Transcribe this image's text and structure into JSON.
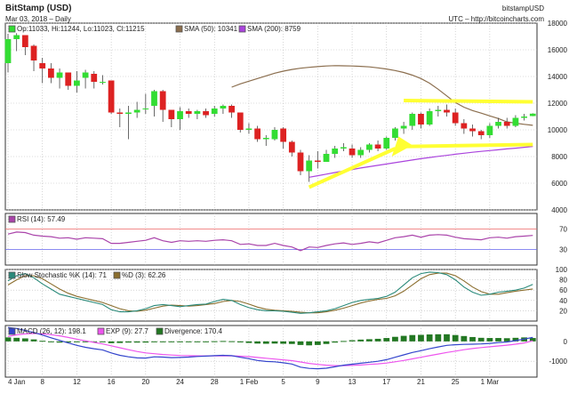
{
  "header": {
    "title": "BitStamp (USD)",
    "date_line": "Mar 03, 2018 – Daily",
    "source_name": "bitstampUSD",
    "source_url": "UTC – http://bitcoincharts.com"
  },
  "chart_data": [
    {
      "panel": "price",
      "type": "candlestick",
      "legend": {
        "ohlc": "Op:11033, Hi:11244, Lo:11023, Cl:11215",
        "sma50": "SMA (50): 10341",
        "sma200": "SMA (200): 8759"
      },
      "colors": {
        "up": "#33dd33",
        "down": "#dd2222",
        "sma50": "#8b6e4e",
        "sma200": "#aa44dd",
        "annotation": "#ffff33"
      },
      "ylim": [
        4000,
        18000
      ],
      "yticks": [
        4000,
        6000,
        8000,
        10000,
        12000,
        14000,
        16000,
        18000
      ],
      "x_tick_labels": [
        "4 Jan",
        "8",
        "12",
        "16",
        "20",
        "24",
        "28",
        "1 Feb",
        "5",
        "9",
        "13",
        "17",
        "21",
        "25",
        "1 Mar"
      ],
      "candles": [
        {
          "o": 15000,
          "c": 16800,
          "h": 17200,
          "l": 14300
        },
        {
          "o": 16800,
          "c": 17100,
          "h": 17250,
          "l": 15900
        },
        {
          "o": 17100,
          "c": 16200,
          "h": 17000,
          "l": 15600
        },
        {
          "o": 16300,
          "c": 15200,
          "h": 16400,
          "l": 14400
        },
        {
          "o": 15000,
          "c": 14600,
          "h": 15400,
          "l": 13500
        },
        {
          "o": 14600,
          "c": 13900,
          "h": 15000,
          "l": 13500
        },
        {
          "o": 13900,
          "c": 14300,
          "h": 14600,
          "l": 13100
        },
        {
          "o": 14300,
          "c": 13300,
          "h": 14300,
          "l": 13000
        },
        {
          "o": 13300,
          "c": 13700,
          "h": 14400,
          "l": 12800
        },
        {
          "o": 13900,
          "c": 14300,
          "h": 14500,
          "l": 13100
        },
        {
          "o": 14200,
          "c": 13600,
          "h": 14400,
          "l": 13100
        },
        {
          "o": 13600,
          "c": 13600,
          "h": 14100,
          "l": 13400
        },
        {
          "o": 13700,
          "c": 11300,
          "h": 13700,
          "l": 11200
        },
        {
          "o": 11300,
          "c": 11200,
          "h": 11600,
          "l": 10200
        },
        {
          "o": 11200,
          "c": 11300,
          "h": 11800,
          "l": 9300
        },
        {
          "o": 11300,
          "c": 11500,
          "h": 12100,
          "l": 10900
        },
        {
          "o": 11600,
          "c": 11600,
          "h": 12700,
          "l": 11200
        },
        {
          "o": 11800,
          "c": 12900,
          "h": 13000,
          "l": 11000
        },
        {
          "o": 12900,
          "c": 11500,
          "h": 13000,
          "l": 10600
        },
        {
          "o": 11500,
          "c": 10800,
          "h": 11500,
          "l": 10200
        },
        {
          "o": 10800,
          "c": 11400,
          "h": 11700,
          "l": 10000
        },
        {
          "o": 11400,
          "c": 11200,
          "h": 11600,
          "l": 10900
        },
        {
          "o": 11200,
          "c": 11400,
          "h": 11500,
          "l": 10800
        },
        {
          "o": 11400,
          "c": 11100,
          "h": 11600,
          "l": 10900
        },
        {
          "o": 11200,
          "c": 11600,
          "h": 11800,
          "l": 11000
        },
        {
          "o": 11600,
          "c": 11800,
          "h": 11900,
          "l": 11200
        },
        {
          "o": 11800,
          "c": 11300,
          "h": 11900,
          "l": 10900
        },
        {
          "o": 11300,
          "c": 10000,
          "h": 11300,
          "l": 9800
        },
        {
          "o": 10000,
          "c": 10100,
          "h": 10500,
          "l": 9700
        },
        {
          "o": 10100,
          "c": 9300,
          "h": 10300,
          "l": 9100
        },
        {
          "o": 9300,
          "c": 9400,
          "h": 9600,
          "l": 8800
        },
        {
          "o": 9300,
          "c": 10000,
          "h": 10200,
          "l": 9200
        },
        {
          "o": 10100,
          "c": 9100,
          "h": 10200,
          "l": 8600
        },
        {
          "o": 9100,
          "c": 8300,
          "h": 9200,
          "l": 8000
        },
        {
          "o": 8300,
          "c": 6900,
          "h": 8500,
          "l": 6600
        },
        {
          "o": 6900,
          "c": 7700,
          "h": 8100,
          "l": 6100
        },
        {
          "o": 7700,
          "c": 7600,
          "h": 8400,
          "l": 7100
        },
        {
          "o": 7600,
          "c": 8200,
          "h": 8500,
          "l": 7600
        },
        {
          "o": 8200,
          "c": 8600,
          "h": 8800,
          "l": 7900
        },
        {
          "o": 8600,
          "c": 8700,
          "h": 9000,
          "l": 8400
        },
        {
          "o": 8600,
          "c": 8100,
          "h": 8900,
          "l": 7900
        },
        {
          "o": 8100,
          "c": 8500,
          "h": 8700,
          "l": 7900
        },
        {
          "o": 8500,
          "c": 8900,
          "h": 9000,
          "l": 8300
        },
        {
          "o": 8900,
          "c": 8600,
          "h": 9200,
          "l": 8400
        },
        {
          "o": 8600,
          "c": 9400,
          "h": 9500,
          "l": 8500
        },
        {
          "o": 9400,
          "c": 10100,
          "h": 10200,
          "l": 9200
        },
        {
          "o": 10100,
          "c": 10300,
          "h": 10600,
          "l": 9700
        },
        {
          "o": 10300,
          "c": 11200,
          "h": 11300,
          "l": 10000
        },
        {
          "o": 11200,
          "c": 10400,
          "h": 11300,
          "l": 10100
        },
        {
          "o": 10400,
          "c": 11400,
          "h": 11600,
          "l": 10300
        },
        {
          "o": 11400,
          "c": 11500,
          "h": 11800,
          "l": 11000
        },
        {
          "o": 11500,
          "c": 11300,
          "h": 11900,
          "l": 11000
        },
        {
          "o": 11300,
          "c": 10500,
          "h": 11600,
          "l": 10300
        },
        {
          "o": 10500,
          "c": 10100,
          "h": 10800,
          "l": 9700
        },
        {
          "o": 10100,
          "c": 9900,
          "h": 10400,
          "l": 9500
        },
        {
          "o": 9900,
          "c": 9600,
          "h": 10000,
          "l": 9300
        },
        {
          "o": 9600,
          "c": 10300,
          "h": 10500,
          "l": 9400
        },
        {
          "o": 10300,
          "c": 10600,
          "h": 10900,
          "l": 10100
        },
        {
          "o": 10600,
          "c": 10300,
          "h": 10900,
          "l": 10100
        },
        {
          "o": 10300,
          "c": 10900,
          "h": 11100,
          "l": 10200
        },
        {
          "o": 10900,
          "c": 11000,
          "h": 11200,
          "l": 10700
        },
        {
          "o": 11033,
          "c": 11215,
          "h": 11244,
          "l": 11023
        }
      ],
      "sma50": [
        13200,
        13450,
        13650,
        13850,
        14050,
        14250,
        14400,
        14530,
        14620,
        14690,
        14740,
        14790,
        14810,
        14800,
        14790,
        14760,
        14720,
        14650,
        14560,
        14450,
        14300,
        14100,
        13850,
        13500,
        13050,
        12550,
        12050,
        11700,
        11450,
        11250,
        11050,
        10850,
        10600,
        10500,
        10410,
        10341
      ],
      "sma200": [
        6450,
        6560,
        6680,
        6800,
        6920,
        7030,
        7140,
        7240,
        7340,
        7440,
        7540,
        7640,
        7740,
        7840,
        7930,
        8010,
        8090,
        8170,
        8250,
        8320,
        8390,
        8450,
        8510,
        8570,
        8630,
        8690,
        8759
      ]
    },
    {
      "panel": "rsi",
      "type": "line",
      "legend": "RSI (14): 57.49",
      "ylim": [
        0,
        100
      ],
      "levels": [
        30,
        70
      ],
      "yticks": [
        30,
        70
      ],
      "values": [
        60,
        64,
        63,
        58,
        56,
        55,
        52,
        53,
        50,
        53,
        52,
        51,
        42,
        42,
        44,
        46,
        48,
        53,
        47,
        44,
        47,
        46,
        47,
        46,
        48,
        49,
        47,
        40,
        41,
        38,
        38,
        42,
        38,
        35,
        28,
        35,
        34,
        38,
        41,
        43,
        40,
        42,
        45,
        43,
        48,
        53,
        55,
        58,
        54,
        58,
        59,
        58,
        54,
        51,
        50,
        49,
        53,
        54,
        52,
        55,
        56,
        57.49
      ]
    },
    {
      "panel": "stochastic",
      "type": "line",
      "legend_k": "Slow Stochastic %K (14): 71",
      "legend_d": "%D (3): 62.26",
      "ylim": [
        0,
        100
      ],
      "yticks": [
        20,
        40,
        60,
        80,
        100
      ],
      "k": [
        78,
        88,
        92,
        84,
        72,
        62,
        52,
        48,
        44,
        40,
        36,
        32,
        22,
        18,
        18,
        20,
        24,
        30,
        32,
        30,
        28,
        30,
        32,
        33,
        38,
        42,
        40,
        32,
        26,
        22,
        20,
        20,
        19,
        17,
        15,
        16,
        18,
        20,
        24,
        30,
        36,
        40,
        42,
        44,
        48,
        56,
        70,
        84,
        92,
        95,
        94,
        90,
        80,
        66,
        56,
        50,
        52,
        56,
        58,
        60,
        64,
        71
      ],
      "d": [
        70,
        80,
        88,
        88,
        82,
        72,
        62,
        54,
        48,
        44,
        40,
        36,
        30,
        24,
        20,
        19,
        21,
        25,
        29,
        31,
        30,
        29,
        30,
        32,
        34,
        38,
        40,
        38,
        33,
        27,
        23,
        21,
        20,
        19,
        17,
        16,
        16,
        18,
        21,
        25,
        30,
        35,
        39,
        42,
        44,
        49,
        58,
        70,
        82,
        90,
        93,
        93,
        88,
        78,
        66,
        57,
        52,
        52,
        55,
        58,
        60,
        62.26
      ]
    },
    {
      "panel": "macd",
      "type": "line+bar",
      "legend_macd": "MACD (26, 12): 198.1",
      "legend_exp": "EXP (9): 27.7",
      "legend_div": "Divergence: 170.4",
      "ylim": [
        -1800,
        800
      ],
      "yticks": [
        -1000,
        0
      ],
      "macd": [
        700,
        650,
        550,
        450,
        320,
        180,
        50,
        -80,
        -200,
        -300,
        -370,
        -430,
        -580,
        -700,
        -780,
        -830,
        -840,
        -780,
        -790,
        -820,
        -810,
        -790,
        -760,
        -740,
        -720,
        -700,
        -720,
        -800,
        -870,
        -960,
        -1010,
        -1030,
        -1080,
        -1140,
        -1300,
        -1360,
        -1380,
        -1350,
        -1280,
        -1200,
        -1150,
        -1100,
        -1050,
        -1000,
        -920,
        -800,
        -680,
        -560,
        -470,
        -370,
        -280,
        -200,
        -170,
        -150,
        -140,
        -130,
        -100,
        -60,
        -30,
        40,
        120,
        198.1
      ],
      "exp": [
        250,
        330,
        380,
        400,
        380,
        340,
        280,
        200,
        110,
        30,
        -50,
        -130,
        -220,
        -320,
        -420,
        -510,
        -580,
        -620,
        -660,
        -690,
        -710,
        -720,
        -730,
        -735,
        -735,
        -730,
        -730,
        -745,
        -770,
        -810,
        -850,
        -890,
        -930,
        -970,
        -1040,
        -1110,
        -1160,
        -1200,
        -1220,
        -1220,
        -1210,
        -1190,
        -1160,
        -1130,
        -1090,
        -1030,
        -960,
        -880,
        -800,
        -720,
        -640,
        -560,
        -490,
        -420,
        -360,
        -310,
        -270,
        -230,
        -190,
        -140,
        -80,
        27.7
      ],
      "divergence": [
        200,
        180,
        150,
        100,
        30,
        -40,
        -60,
        -50,
        -20,
        -30,
        -30,
        -20,
        -90,
        -80,
        -60,
        -60,
        -60,
        -40,
        -40,
        -40,
        -30,
        -20,
        -10,
        0,
        10,
        20,
        10,
        -50,
        -80,
        -110,
        -120,
        -110,
        -120,
        -130,
        -180,
        -200,
        -180,
        -130,
        -60,
        20,
        60,
        90,
        110,
        130,
        170,
        230,
        280,
        320,
        330,
        350,
        360,
        360,
        320,
        270,
        220,
        180,
        170,
        170,
        160,
        180,
        200,
        170.4
      ]
    }
  ]
}
